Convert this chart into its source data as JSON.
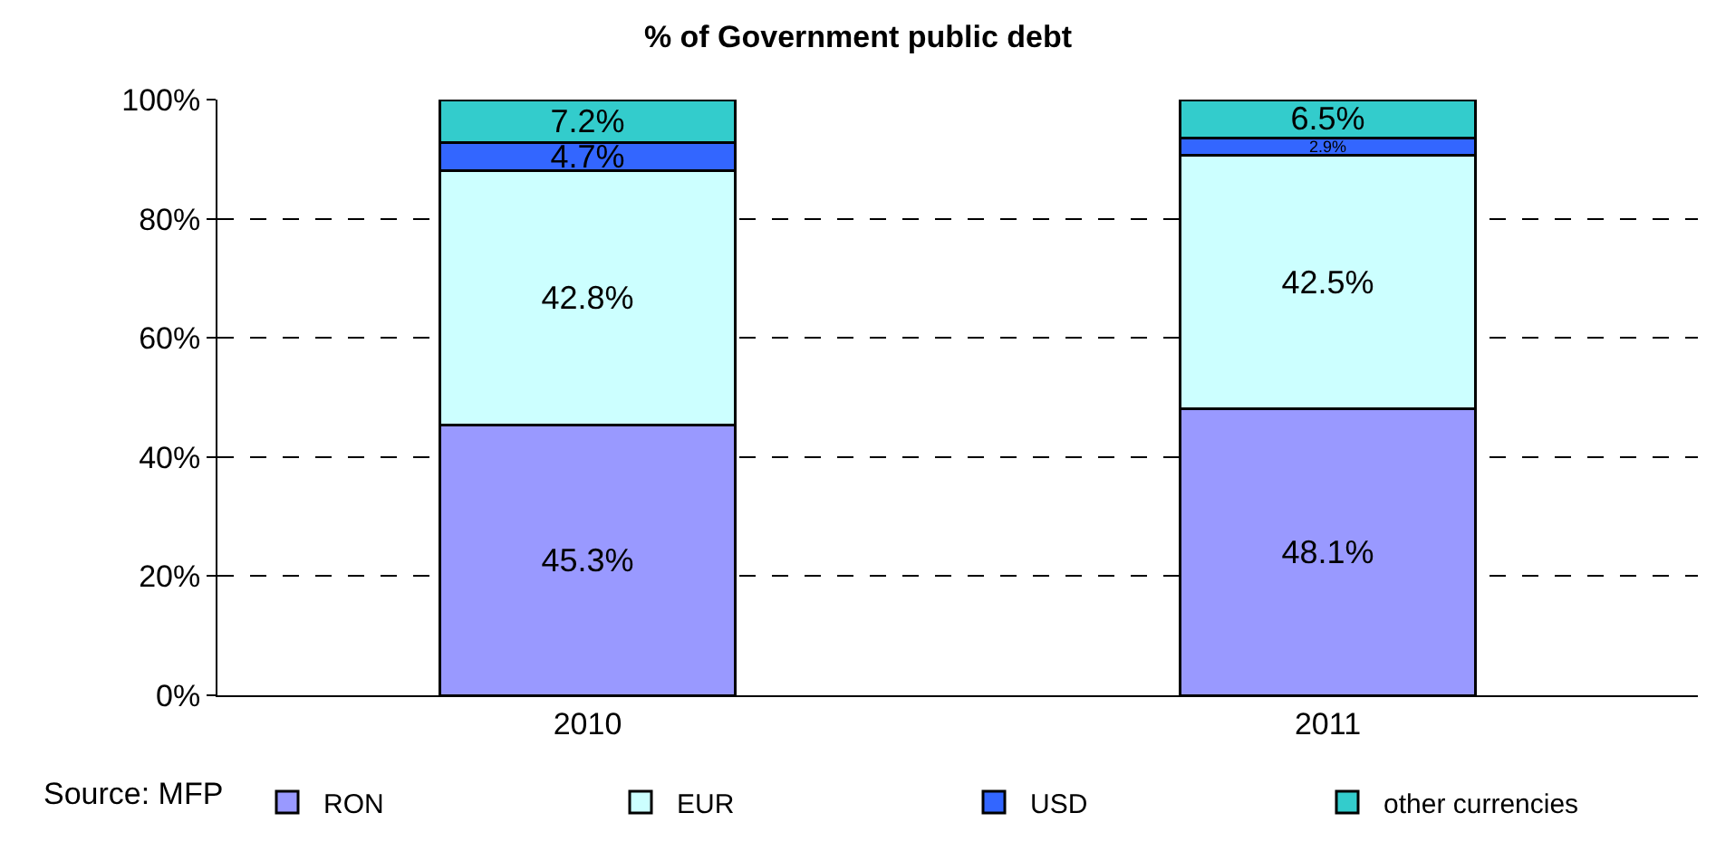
{
  "chart_data": {
    "type": "bar",
    "title": "% of Government public debt",
    "stacked": true,
    "categories": [
      "2010",
      "2011"
    ],
    "series": [
      {
        "name": "RON",
        "color": "#9999ff",
        "values": [
          45.3,
          48.1
        ],
        "value_labels": [
          "45.3%",
          "48.1%"
        ]
      },
      {
        "name": "EUR",
        "color": "#ccffff",
        "values": [
          42.8,
          42.5
        ],
        "value_labels": [
          "42.8%",
          "42.5%"
        ]
      },
      {
        "name": "USD",
        "color": "#3366ff",
        "values": [
          4.7,
          2.9
        ],
        "value_labels": [
          "4.7%",
          "2.9%"
        ]
      },
      {
        "name": "other currencies",
        "color": "#33cccc",
        "values": [
          7.2,
          6.5
        ],
        "value_labels": [
          "7.2%",
          "6.5%"
        ]
      }
    ],
    "ylim": [
      0,
      100
    ],
    "yticks": [
      {
        "value": 0,
        "label": "0%"
      },
      {
        "value": 20,
        "label": "20%"
      },
      {
        "value": 40,
        "label": "40%"
      },
      {
        "value": 60,
        "label": "60%"
      },
      {
        "value": 80,
        "label": "80%"
      },
      {
        "value": 100,
        "label": "100%"
      }
    ],
    "grid": "y",
    "legend": "bottom",
    "annotations": [
      "Source: MFP"
    ]
  }
}
